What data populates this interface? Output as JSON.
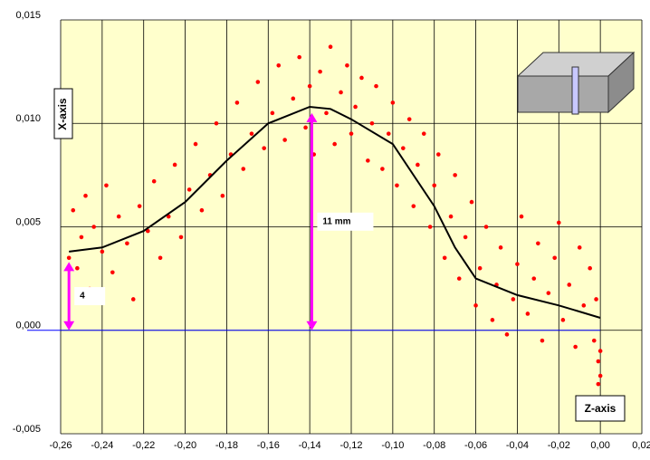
{
  "chart_data": {
    "type": "scatter",
    "x_axis_label": "Z-axis",
    "y_axis_label": "X-axis",
    "xlim": [
      -0.26,
      0.02
    ],
    "ylim": [
      -0.005,
      0.015
    ],
    "xticks": [
      {
        "value": -0.26,
        "label": "-0,26"
      },
      {
        "value": -0.24,
        "label": "-0,24"
      },
      {
        "value": -0.22,
        "label": "-0,22"
      },
      {
        "value": -0.2,
        "label": "-0,20"
      },
      {
        "value": -0.18,
        "label": "-0,18"
      },
      {
        "value": -0.16,
        "label": "-0,16"
      },
      {
        "value": -0.14,
        "label": "-0,14"
      },
      {
        "value": -0.12,
        "label": "-0,12"
      },
      {
        "value": -0.1,
        "label": "-0,10"
      },
      {
        "value": -0.08,
        "label": "-0,08"
      },
      {
        "value": -0.06,
        "label": "-0,06"
      },
      {
        "value": -0.04,
        "label": "-0,04"
      },
      {
        "value": -0.02,
        "label": "-0,02"
      },
      {
        "value": 0,
        "label": "0,00"
      },
      {
        "value": 0.02,
        "label": "0,02"
      }
    ],
    "yticks": [
      {
        "value": -0.005,
        "label": "-0,005"
      },
      {
        "value": 0,
        "label": "0,000"
      },
      {
        "value": 0.005,
        "label": "0,005"
      },
      {
        "value": 0.01,
        "label": "0,010"
      },
      {
        "value": 0.015,
        "label": "0,015"
      }
    ],
    "grid": true,
    "series": [
      {
        "color": "#ff0000",
        "x": [
          -0.256,
          -0.254,
          -0.252,
          -0.25,
          -0.248,
          -0.246,
          -0.244,
          -0.24,
          -0.238,
          -0.235,
          -0.232,
          -0.228,
          -0.225,
          -0.222,
          -0.218,
          -0.215,
          -0.212,
          -0.208,
          -0.205,
          -0.202,
          -0.198,
          -0.195,
          -0.192,
          -0.188,
          -0.185,
          -0.182,
          -0.178,
          -0.175,
          -0.172,
          -0.168,
          -0.165,
          -0.162,
          -0.158,
          -0.155,
          -0.152,
          -0.148,
          -0.145,
          -0.142,
          -0.14,
          -0.138,
          -0.135,
          -0.132,
          -0.13,
          -0.128,
          -0.125,
          -0.122,
          -0.12,
          -0.118,
          -0.115,
          -0.112,
          -0.11,
          -0.108,
          -0.105,
          -0.102,
          -0.1,
          -0.098,
          -0.095,
          -0.092,
          -0.09,
          -0.088,
          -0.085,
          -0.082,
          -0.08,
          -0.078,
          -0.075,
          -0.072,
          -0.07,
          -0.068,
          -0.065,
          -0.062,
          -0.06,
          -0.058,
          -0.055,
          -0.052,
          -0.05,
          -0.048,
          -0.045,
          -0.042,
          -0.04,
          -0.038,
          -0.035,
          -0.032,
          -0.03,
          -0.028,
          -0.025,
          -0.022,
          -0.02,
          -0.018,
          -0.015,
          -0.012,
          -0.01,
          -0.008,
          -0.005,
          -0.003,
          -0.002,
          -0.001,
          0.0,
          0.0,
          -0.001
        ],
        "values": [
          0.0035,
          0.0058,
          0.003,
          0.0045,
          0.0065,
          0.002,
          0.005,
          0.0038,
          0.007,
          0.0028,
          0.0055,
          0.0042,
          0.0015,
          0.006,
          0.0048,
          0.0072,
          0.0035,
          0.0055,
          0.008,
          0.0045,
          0.0068,
          0.009,
          0.0058,
          0.0075,
          0.01,
          0.0065,
          0.0085,
          0.011,
          0.0078,
          0.0095,
          0.012,
          0.0088,
          0.0105,
          0.0128,
          0.0092,
          0.0112,
          0.0132,
          0.0098,
          0.0118,
          0.0085,
          0.0125,
          0.0105,
          0.0137,
          0.009,
          0.0115,
          0.0128,
          0.0095,
          0.0108,
          0.0122,
          0.0082,
          0.01,
          0.0118,
          0.0078,
          0.0095,
          0.011,
          0.007,
          0.0088,
          0.0102,
          0.006,
          0.008,
          0.0095,
          0.005,
          0.007,
          0.0085,
          0.0035,
          0.0055,
          0.0075,
          0.0025,
          0.0045,
          0.0062,
          0.0012,
          0.003,
          0.005,
          0.0005,
          0.0022,
          0.004,
          -0.0002,
          0.0015,
          0.0032,
          0.0055,
          0.0008,
          0.0025,
          0.0042,
          -0.0005,
          0.0018,
          0.0035,
          0.0052,
          0.0005,
          0.0022,
          -0.0008,
          0.004,
          0.0012,
          0.003,
          -0.0005,
          0.0015,
          -0.0015,
          -0.0022,
          -0.001,
          -0.0026
        ]
      },
      {
        "type": "line",
        "color": "#000000",
        "x": [
          -0.256,
          -0.24,
          -0.22,
          -0.2,
          -0.18,
          -0.16,
          -0.14,
          -0.13,
          -0.12,
          -0.1,
          -0.08,
          -0.07,
          -0.06,
          -0.04,
          -0.02,
          0.0
        ],
        "values": [
          0.0038,
          0.004,
          0.0048,
          0.0062,
          0.0082,
          0.01,
          0.0108,
          0.0107,
          0.0102,
          0.009,
          0.006,
          0.004,
          0.0025,
          0.0017,
          0.0012,
          0.0006
        ]
      }
    ],
    "annotations": [
      {
        "text": "4",
        "x": -0.256,
        "y": 0.0033
      },
      {
        "text": "11 mm",
        "x": -0.139,
        "y": 0.0105
      }
    ]
  }
}
